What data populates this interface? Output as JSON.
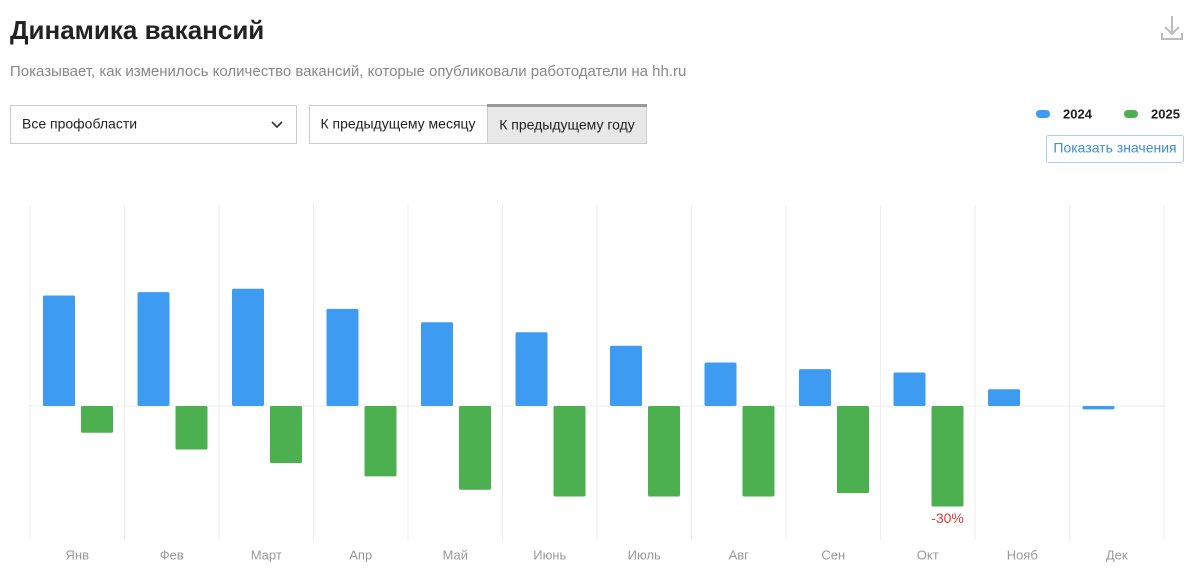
{
  "header": {
    "title": "Динамика вакансий",
    "subtitle": "Показывает, как изменилось количество вакансий, которые опубликовали работодатели на hh.ru"
  },
  "controls": {
    "dropdown": "Все профобласти",
    "tabs": [
      "К предыдущему месяцу",
      "К предыдущему году"
    ],
    "show_values": "Показать значения"
  },
  "chart_data": {
    "type": "bar",
    "categories": [
      "Янв",
      "Фев",
      "Март",
      "Апр",
      "Май",
      "Июнь",
      "Июль",
      "Авг",
      "Сен",
      "Окт",
      "Нояб",
      "Дек"
    ],
    "series": [
      {
        "name": "2024",
        "color": "#3d9cf2",
        "values": [
          33,
          34,
          35,
          29,
          25,
          22,
          18,
          13,
          11,
          10,
          5,
          -1
        ]
      },
      {
        "name": "2025",
        "color": "#4caf50",
        "values": [
          -8,
          -13,
          -17,
          -21,
          -25,
          -27,
          -27,
          -27,
          -26,
          -30,
          null,
          null
        ],
        "value_labels": [
          null,
          null,
          null,
          null,
          null,
          null,
          null,
          null,
          null,
          "-30%",
          null,
          null
        ]
      }
    ],
    "ylim": [
      -40,
      60
    ]
  }
}
